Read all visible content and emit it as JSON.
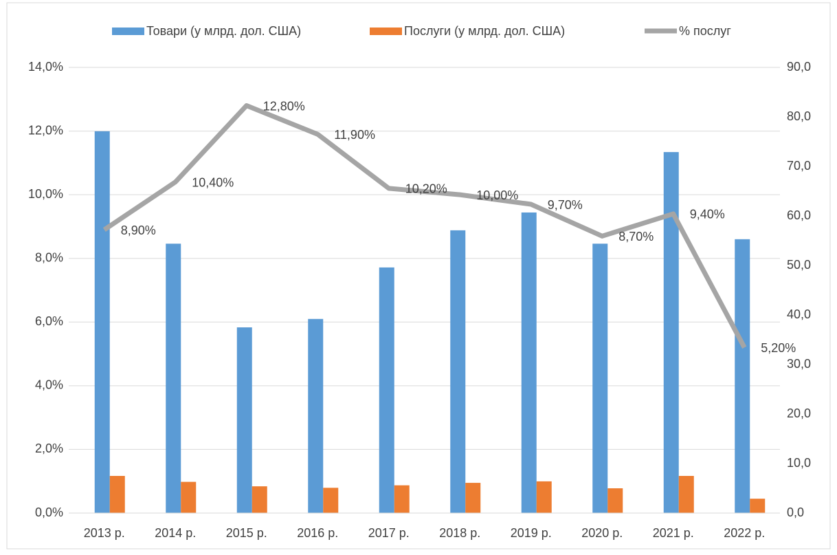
{
  "chart_data": {
    "type": "bar-line",
    "categories": [
      "2013 р.",
      "2014 р.",
      "2015 р.",
      "2016 р.",
      "2017 р.",
      "2018 р.",
      "2019 р.",
      "2020 р.",
      "2021 р.",
      "2022 р."
    ],
    "series": [
      {
        "name": "Товари (у млрд. дол. США)",
        "color": "#5b9bd5",
        "type": "bar",
        "axis": "y2",
        "values": [
          77.1,
          54.4,
          37.5,
          39.2,
          49.6,
          57.1,
          60.7,
          54.4,
          72.9,
          55.3
        ]
      },
      {
        "name": "Послуги (у млрд. дол. США)",
        "color": "#ed7d31",
        "type": "bar",
        "axis": "y2",
        "values": [
          7.5,
          6.3,
          5.4,
          5.1,
          5.6,
          6.1,
          6.4,
          5.0,
          7.5,
          2.9
        ]
      },
      {
        "name": "% послуг",
        "color": "#a5a5a5",
        "type": "line",
        "values": [
          8.9,
          10.4,
          12.8,
          11.9,
          10.2,
          10.0,
          9.7,
          8.7,
          9.4,
          5.2
        ],
        "value_labels": [
          "8,90%",
          "10,40%",
          "12,80%",
          "11,90%",
          "10,20%",
          "10,00%",
          "9,70%",
          "8,70%",
          "9,40%",
          "5,20%"
        ]
      }
    ],
    "ylim": [
      0,
      14
    ],
    "yticks": [
      {
        "value": 0,
        "label": "0,0%"
      },
      {
        "value": 2,
        "label": "2,0%"
      },
      {
        "value": 4,
        "label": "4,0%"
      },
      {
        "value": 6,
        "label": "6,0%"
      },
      {
        "value": 8,
        "label": "8,0%"
      },
      {
        "value": 10,
        "label": "10,0%"
      },
      {
        "value": 12,
        "label": "12,0%"
      },
      {
        "value": 14,
        "label": "14,0%"
      }
    ],
    "y2lim": [
      0,
      90
    ],
    "y2ticks": [
      {
        "value": 0,
        "label": "0,0"
      },
      {
        "value": 10,
        "label": "10,0"
      },
      {
        "value": 20,
        "label": "20,0"
      },
      {
        "value": 30,
        "label": "30,0"
      },
      {
        "value": 40,
        "label": "40,0"
      },
      {
        "value": 50,
        "label": "50,0"
      },
      {
        "value": 60,
        "label": "60,0"
      },
      {
        "value": 70,
        "label": "70,0"
      },
      {
        "value": 80,
        "label": "80,0"
      },
      {
        "value": 90,
        "label": "90,0"
      }
    ],
    "grid": true,
    "legend": "top"
  }
}
